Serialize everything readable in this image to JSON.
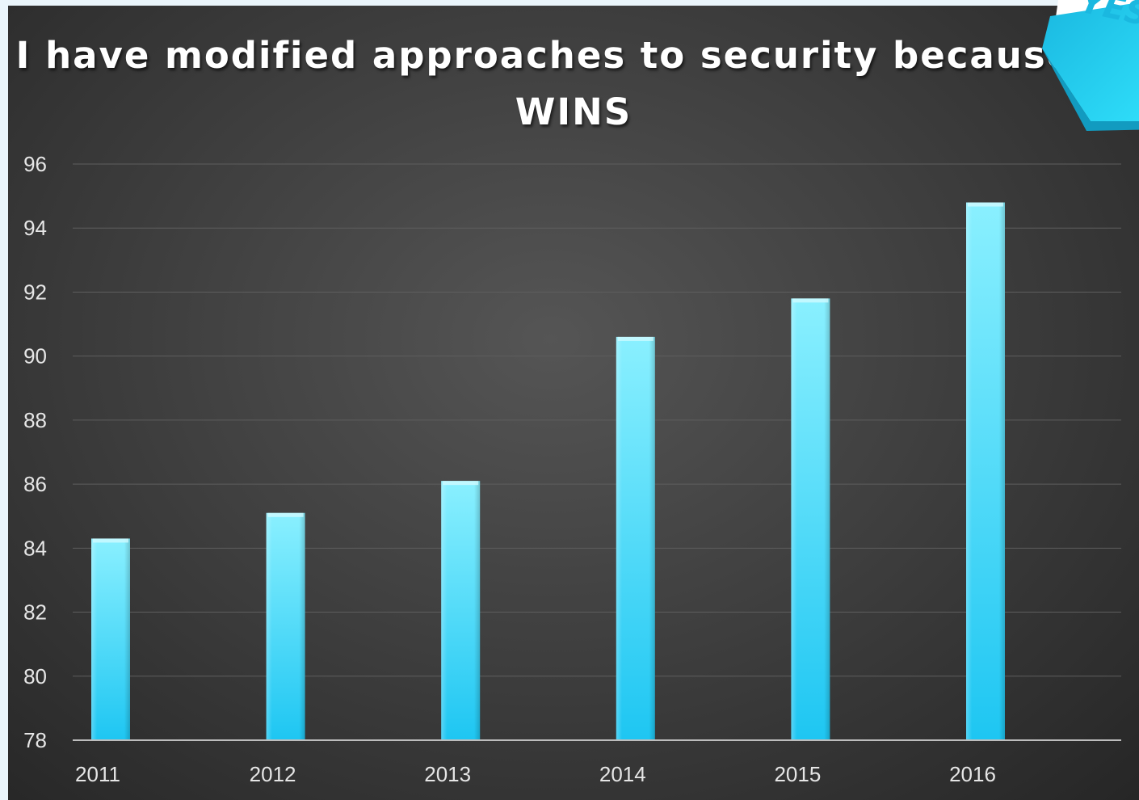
{
  "chart_data": {
    "type": "bar",
    "title": "I have modified approaches to security because of WINS",
    "categories": [
      "2011",
      "2012",
      "2013",
      "2014",
      "2015",
      "2016"
    ],
    "values": [
      84.3,
      85.1,
      86.1,
      90.6,
      91.8,
      94.8
    ],
    "ylim": [
      78,
      96
    ],
    "yticks": [
      "78",
      "80",
      "82",
      "84",
      "86",
      "88",
      "90",
      "92",
      "94",
      "96"
    ],
    "xlabel": "",
    "ylabel": "",
    "grid": true,
    "legend": "none",
    "bar_color_top": "#8af0ff",
    "bar_color_bottom": "#1ec6f2"
  },
  "corner_badge": {
    "label": "YES",
    "color": "#22d3f5"
  }
}
